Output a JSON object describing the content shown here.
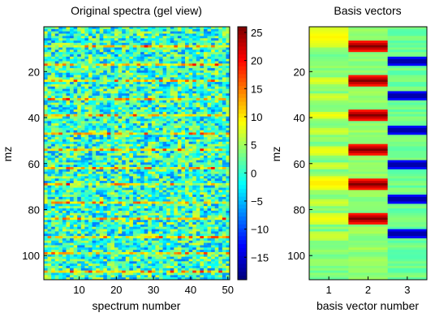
{
  "chart_data": [
    {
      "type": "heatmap",
      "title": "Original spectra (gel view)",
      "xlabel": "spectrum number",
      "ylabel": "mz",
      "x_range": [
        1,
        50
      ],
      "y_range": [
        1,
        110
      ],
      "x_ticks": [
        10,
        20,
        30,
        40,
        50
      ],
      "y_ticks": [
        20,
        40,
        60,
        80,
        100
      ],
      "y_reversed": true,
      "colormap": "jet",
      "color_range": [
        -19,
        26
      ],
      "colorbar_ticks": [
        25,
        20,
        15,
        10,
        5,
        0,
        -5,
        -10,
        -15
      ],
      "dominant_value": 0,
      "noise_amplitude": 8,
      "high_rows_mz": [
        9,
        17,
        24,
        32,
        39,
        47,
        54,
        62,
        69,
        77,
        84,
        92,
        99,
        107
      ],
      "high_row_value": 12
    },
    {
      "type": "heatmap",
      "title": "Basis vectors",
      "xlabel": "basis vector number",
      "ylabel": "mz",
      "x_range": [
        1,
        3
      ],
      "y_range": [
        1,
        110
      ],
      "x_ticks": [
        1,
        2,
        3
      ],
      "y_ticks": [
        20,
        40,
        60,
        80,
        100
      ],
      "y_reversed": true,
      "colormap": "jet",
      "columns": [
        {
          "column": 1,
          "baseline": 0.5,
          "bands": [
            {
              "mz": [
                1,
                9
              ],
              "value": 0.9
            },
            {
              "mz": [
                23,
                25
              ],
              "value": 0.8
            },
            {
              "mz": [
                30,
                32
              ],
              "value": 0.75
            },
            {
              "mz": [
                38,
                40
              ],
              "value": 0.85
            },
            {
              "mz": [
                45,
                47
              ],
              "value": 0.75
            },
            {
              "mz": [
                53,
                56
              ],
              "value": 0.85
            },
            {
              "mz": [
                60,
                62
              ],
              "value": 0.75
            },
            {
              "mz": [
                66,
                71
              ],
              "value": 0.95
            },
            {
              "mz": [
                76,
                78
              ],
              "value": 0.75
            },
            {
              "mz": [
                82,
                86
              ],
              "value": 0.85
            },
            {
              "mz": [
                90,
                93
              ],
              "value": 0.75
            }
          ]
        },
        {
          "column": 2,
          "baseline": 0.55,
          "bands": [
            {
              "mz": [
                7,
                11
              ],
              "value": 2.0
            },
            {
              "mz": [
                22,
                26
              ],
              "value": 2.0
            },
            {
              "mz": [
                37,
                41
              ],
              "value": 2.0
            },
            {
              "mz": [
                52,
                56
              ],
              "value": 2.0
            },
            {
              "mz": [
                67,
                71
              ],
              "value": 2.0
            },
            {
              "mz": [
                82,
                86
              ],
              "value": 2.0
            }
          ]
        },
        {
          "column": 3,
          "baseline": 0.45,
          "bands": [
            {
              "mz": [
                14,
                17
              ],
              "value": -1.0
            },
            {
              "mz": [
                29,
                32
              ],
              "value": -1.0
            },
            {
              "mz": [
                44,
                47
              ],
              "value": -1.0
            },
            {
              "mz": [
                59,
                62
              ],
              "value": -1.0
            },
            {
              "mz": [
                74,
                77
              ],
              "value": -1.0
            },
            {
              "mz": [
                89,
                92
              ],
              "value": -1.0
            }
          ]
        }
      ],
      "color_range": [
        -1,
        2
      ]
    }
  ]
}
